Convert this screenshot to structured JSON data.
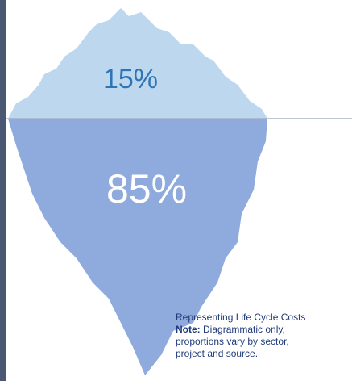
{
  "iceberg": {
    "above_water": "15%",
    "below_water": "85%"
  },
  "caption": {
    "title": "Representing Life Cycle Costs",
    "note_label": "Note:",
    "note_text": "Diagrammatic only, proportions vary by sector, project and source."
  }
}
